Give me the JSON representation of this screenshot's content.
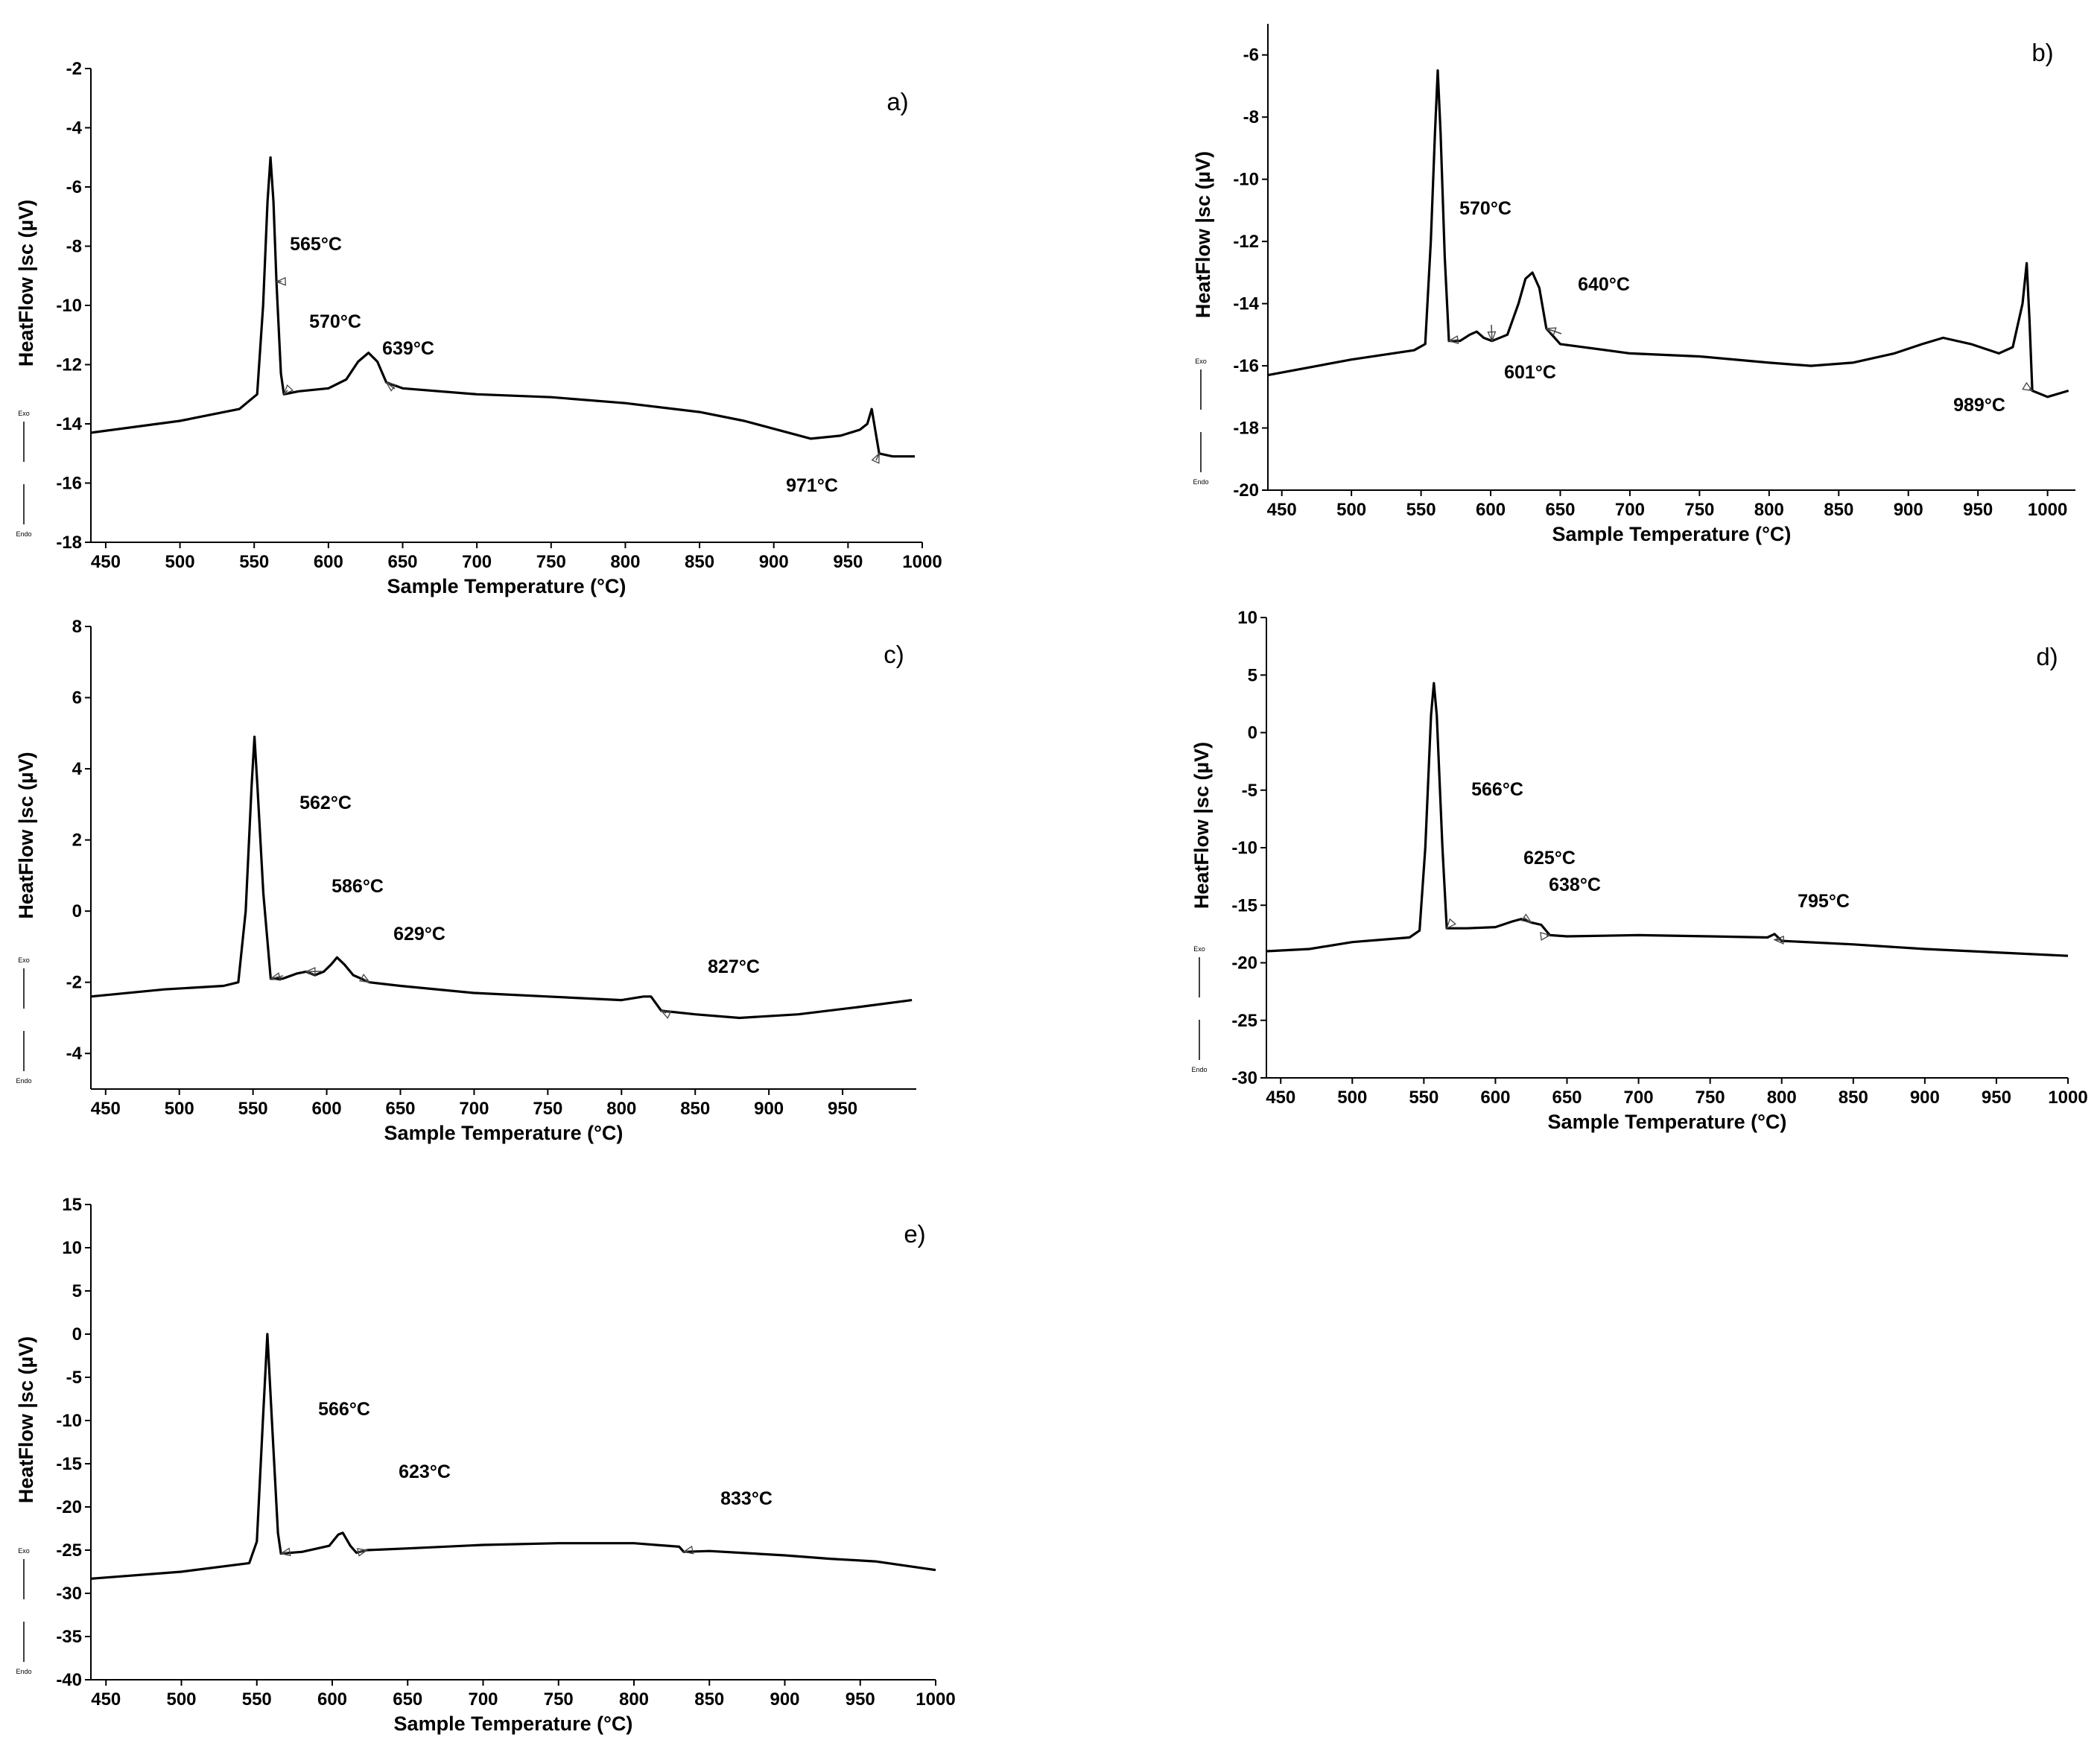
{
  "figure": {
    "panels": [
      {
        "id": "a",
        "panel_label": "a)",
        "exo_label": "Exo",
        "endo_label": "Endo"
      },
      {
        "id": "b",
        "panel_label": "b)",
        "exo_label": "Exo",
        "endo_label": "Endo"
      },
      {
        "id": "c",
        "panel_label": "c)",
        "exo_label": "Exo",
        "endo_label": "Endo"
      },
      {
        "id": "d",
        "panel_label": "d)",
        "exo_label": "Exo",
        "endo_label": "Endo"
      },
      {
        "id": "e",
        "panel_label": "e)",
        "exo_label": "Exo",
        "endo_label": "Endo"
      }
    ]
  },
  "chart_data": [
    {
      "panel": "a)",
      "type": "line",
      "xlabel": "Sample Temperature (°C)",
      "ylabel": "HeatFlow |sc (µV)",
      "xlim": [
        440,
        1000
      ],
      "ylim": [
        -18,
        -2
      ],
      "xticks": [
        450,
        500,
        550,
        600,
        650,
        700,
        750,
        800,
        850,
        900,
        950,
        1000
      ],
      "yticks": [
        -2,
        -4,
        -6,
        -8,
        -10,
        -12,
        -14,
        -16,
        -18
      ],
      "grid": false,
      "series": [
        {
          "points": [
            [
              440,
              -14.3
            ],
            [
              500,
              -13.9
            ],
            [
              540,
              -13.5
            ],
            [
              552,
              -13.0
            ],
            [
              556,
              -10.0
            ],
            [
              559,
              -6.5
            ],
            [
              561,
              -5.0
            ],
            [
              563,
              -6.5
            ],
            [
              565,
              -9.2
            ],
            [
              568,
              -12.3
            ],
            [
              570,
              -13.0
            ],
            [
              580,
              -12.9
            ],
            [
              600,
              -12.8
            ],
            [
              612,
              -12.5
            ],
            [
              620,
              -11.9
            ],
            [
              627,
              -11.6
            ],
            [
              633,
              -11.9
            ],
            [
              639,
              -12.6
            ],
            [
              650,
              -12.8
            ],
            [
              700,
              -13.0
            ],
            [
              750,
              -13.1
            ],
            [
              800,
              -13.3
            ],
            [
              850,
              -13.6
            ],
            [
              880,
              -13.9
            ],
            [
              910,
              -14.3
            ],
            [
              925,
              -14.5
            ],
            [
              945,
              -14.4
            ],
            [
              958,
              -14.2
            ],
            [
              963,
              -14.0
            ],
            [
              966,
              -13.5
            ],
            [
              968,
              -14.1
            ],
            [
              971,
              -15.0
            ],
            [
              980,
              -15.1
            ],
            [
              995,
              -15.1
            ]
          ]
        }
      ],
      "annotations": [
        {
          "text": "565°C",
          "x": 565,
          "y": -9.2
        },
        {
          "text": "570°C",
          "x": 570,
          "y": -13.0
        },
        {
          "text": "639°C",
          "x": 639,
          "y": -12.6
        },
        {
          "text": "971°C",
          "x": 971,
          "y": -15.0
        }
      ]
    },
    {
      "panel": "b)",
      "type": "line",
      "xlabel": "Sample Temperature (°C)",
      "ylabel": "HeatFlow |sc (µV)",
      "xlim": [
        440,
        1020
      ],
      "ylim": [
        -20,
        -5
      ],
      "xticks": [
        450,
        500,
        550,
        600,
        650,
        700,
        750,
        800,
        850,
        900,
        950,
        1000
      ],
      "yticks": [
        -6,
        -8,
        -10,
        -12,
        -14,
        -16,
        -18,
        -20
      ],
      "grid": false,
      "series": [
        {
          "points": [
            [
              440,
              -16.3
            ],
            [
              500,
              -15.8
            ],
            [
              545,
              -15.5
            ],
            [
              553,
              -15.3
            ],
            [
              557,
              -12.0
            ],
            [
              560,
              -8.5
            ],
            [
              562,
              -6.5
            ],
            [
              564,
              -8.5
            ],
            [
              567,
              -12.5
            ],
            [
              570,
              -15.2
            ],
            [
              578,
              -15.2
            ],
            [
              585,
              -15.0
            ],
            [
              590,
              -14.9
            ],
            [
              595,
              -15.1
            ],
            [
              601,
              -15.2
            ],
            [
              612,
              -15.0
            ],
            [
              620,
              -14.0
            ],
            [
              625,
              -13.2
            ],
            [
              630,
              -13.0
            ],
            [
              635,
              -13.5
            ],
            [
              640,
              -14.8
            ],
            [
              650,
              -15.3
            ],
            [
              700,
              -15.6
            ],
            [
              750,
              -15.7
            ],
            [
              800,
              -15.9
            ],
            [
              830,
              -16.0
            ],
            [
              860,
              -15.9
            ],
            [
              890,
              -15.6
            ],
            [
              910,
              -15.3
            ],
            [
              925,
              -15.1
            ],
            [
              945,
              -15.3
            ],
            [
              965,
              -15.6
            ],
            [
              975,
              -15.4
            ],
            [
              982,
              -14.0
            ],
            [
              985,
              -12.7
            ],
            [
              987,
              -14.5
            ],
            [
              989,
              -16.8
            ],
            [
              1000,
              -17.0
            ],
            [
              1015,
              -16.8
            ]
          ]
        }
      ],
      "annotations": [
        {
          "text": "570°C",
          "x": 570,
          "y": -15.2
        },
        {
          "text": "601°C",
          "x": 601,
          "y": -15.2
        },
        {
          "text": "640°C",
          "x": 640,
          "y": -14.8
        },
        {
          "text": "989°C",
          "x": 989,
          "y": -16.8
        }
      ]
    },
    {
      "panel": "c)",
      "type": "line",
      "xlabel": "Sample Temperature (°C)",
      "ylabel": "HeatFlow |sc (µV)",
      "xlim": [
        440,
        1000
      ],
      "ylim": [
        -5,
        8
      ],
      "xticks": [
        450,
        500,
        550,
        600,
        650,
        700,
        750,
        800,
        850,
        900,
        950
      ],
      "yticks": [
        8,
        6,
        4,
        2,
        0,
        -2,
        -4
      ],
      "grid": false,
      "series": [
        {
          "points": [
            [
              440,
              -2.4
            ],
            [
              490,
              -2.2
            ],
            [
              530,
              -2.1
            ],
            [
              540,
              -2.0
            ],
            [
              545,
              0.0
            ],
            [
              549,
              3.5
            ],
            [
              551,
              4.9
            ],
            [
              553,
              3.5
            ],
            [
              557,
              0.5
            ],
            [
              562,
              -1.9
            ],
            [
              570,
              -1.9
            ],
            [
              580,
              -1.75
            ],
            [
              586,
              -1.7
            ],
            [
              592,
              -1.8
            ],
            [
              598,
              -1.7
            ],
            [
              603,
              -1.5
            ],
            [
              607,
              -1.3
            ],
            [
              612,
              -1.5
            ],
            [
              618,
              -1.8
            ],
            [
              629,
              -2.0
            ],
            [
              650,
              -2.1
            ],
            [
              700,
              -2.3
            ],
            [
              750,
              -2.4
            ],
            [
              800,
              -2.5
            ],
            [
              815,
              -2.4
            ],
            [
              820,
              -2.4
            ],
            [
              827,
              -2.8
            ],
            [
              850,
              -2.9
            ],
            [
              880,
              -3.0
            ],
            [
              920,
              -2.9
            ],
            [
              960,
              -2.7
            ],
            [
              997,
              -2.5
            ]
          ]
        }
      ],
      "annotations": [
        {
          "text": "562°C",
          "x": 562,
          "y": -1.9
        },
        {
          "text": "586°C",
          "x": 586,
          "y": -1.7
        },
        {
          "text": "629°C",
          "x": 629,
          "y": -2.0
        },
        {
          "text": "827°C",
          "x": 827,
          "y": -2.8
        }
      ]
    },
    {
      "panel": "d)",
      "type": "line",
      "xlabel": "Sample Temperature (°C)",
      "ylabel": "HeatFlow |sc (µV)",
      "xlim": [
        440,
        1000
      ],
      "ylim": [
        -30,
        10
      ],
      "xticks": [
        450,
        500,
        550,
        600,
        650,
        700,
        750,
        800,
        850,
        900,
        950,
        1000
      ],
      "yticks": [
        10,
        5,
        0,
        -5,
        -10,
        -15,
        -20,
        -25,
        -30
      ],
      "grid": false,
      "series": [
        {
          "points": [
            [
              440,
              -19.0
            ],
            [
              470,
              -18.8
            ],
            [
              500,
              -18.2
            ],
            [
              540,
              -17.8
            ],
            [
              547,
              -17.2
            ],
            [
              551,
              -10.0
            ],
            [
              555,
              1.5
            ],
            [
              557,
              4.3
            ],
            [
              559,
              1.5
            ],
            [
              563,
              -10.0
            ],
            [
              566,
              -17.0
            ],
            [
              580,
              -17.0
            ],
            [
              600,
              -16.9
            ],
            [
              612,
              -16.4
            ],
            [
              618,
              -16.2
            ],
            [
              625,
              -16.5
            ],
            [
              632,
              -16.7
            ],
            [
              638,
              -17.6
            ],
            [
              650,
              -17.7
            ],
            [
              700,
              -17.6
            ],
            [
              750,
              -17.7
            ],
            [
              790,
              -17.8
            ],
            [
              795,
              -17.5
            ],
            [
              800,
              -18.1
            ],
            [
              850,
              -18.4
            ],
            [
              900,
              -18.8
            ],
            [
              950,
              -19.1
            ],
            [
              1000,
              -19.4
            ]
          ]
        }
      ],
      "annotations": [
        {
          "text": "566°C",
          "x": 566,
          "y": -17.0
        },
        {
          "text": "625°C",
          "x": 625,
          "y": -16.5
        },
        {
          "text": "638°C",
          "x": 638,
          "y": -17.6
        },
        {
          "text": "795°C",
          "x": 795,
          "y": -18.0
        }
      ]
    },
    {
      "panel": "e)",
      "type": "line",
      "xlabel": "Sample Temperature (°C)",
      "ylabel": "HeatFlow |sc (µV)",
      "xlim": [
        440,
        1000
      ],
      "ylim": [
        -40,
        15
      ],
      "xticks": [
        450,
        500,
        550,
        600,
        650,
        700,
        750,
        800,
        850,
        900,
        950,
        1000
      ],
      "yticks": [
        15,
        10,
        5,
        0,
        -5,
        -10,
        -15,
        -20,
        -25,
        -30,
        -35,
        -40
      ],
      "grid": false,
      "series": [
        {
          "points": [
            [
              440,
              -28.3
            ],
            [
              500,
              -27.5
            ],
            [
              545,
              -26.5
            ],
            [
              550,
              -24.0
            ],
            [
              554,
              -10.0
            ],
            [
              557,
              0.0
            ],
            [
              560,
              -10.0
            ],
            [
              564,
              -23.0
            ],
            [
              566,
              -25.4
            ],
            [
              580,
              -25.2
            ],
            [
              598,
              -24.5
            ],
            [
              604,
              -23.2
            ],
            [
              607,
              -23.0
            ],
            [
              612,
              -24.5
            ],
            [
              616,
              -25.3
            ],
            [
              623,
              -25.0
            ],
            [
              650,
              -24.8
            ],
            [
              700,
              -24.4
            ],
            [
              750,
              -24.2
            ],
            [
              800,
              -24.2
            ],
            [
              830,
              -24.6
            ],
            [
              833,
              -25.2
            ],
            [
              850,
              -25.1
            ],
            [
              900,
              -25.6
            ],
            [
              930,
              -26.0
            ],
            [
              960,
              -26.3
            ],
            [
              1000,
              -27.3
            ]
          ]
        }
      ],
      "annotations": [
        {
          "text": "566°C",
          "x": 566,
          "y": -25.4
        },
        {
          "text": "623°C",
          "x": 623,
          "y": -25.0
        },
        {
          "text": "833°C",
          "x": 833,
          "y": -25.2
        }
      ]
    }
  ]
}
